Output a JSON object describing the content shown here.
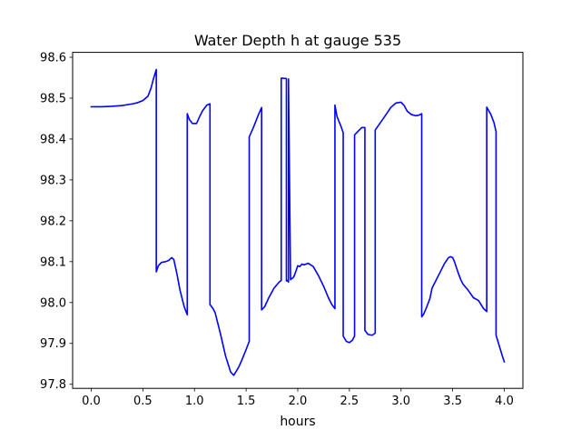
{
  "chart_data": {
    "type": "line",
    "title": "Water Depth h at gauge 535",
    "xlabel": "hours",
    "ylabel": "",
    "xlim": [
      -0.18,
      4.18
    ],
    "ylim": [
      97.79,
      98.612
    ],
    "x_ticks": [
      0.0,
      0.5,
      1.0,
      1.5,
      2.0,
      2.5,
      3.0,
      3.5,
      4.0
    ],
    "x_tick_labels": [
      "0.0",
      "0.5",
      "1.0",
      "1.5",
      "2.0",
      "2.5",
      "3.0",
      "3.5",
      "4.0"
    ],
    "y_ticks": [
      97.8,
      97.9,
      98.0,
      98.1,
      98.2,
      98.3,
      98.4,
      98.5,
      98.6
    ],
    "y_tick_labels": [
      "97.8",
      "97.9",
      "98.0",
      "98.1",
      "98.2",
      "98.3",
      "98.4",
      "98.5",
      "98.6"
    ],
    "grid": false,
    "legend": "none",
    "series": [
      {
        "color": "#0000ff",
        "x": [
          0.0,
          0.1,
          0.2,
          0.3,
          0.4,
          0.45,
          0.5,
          0.55,
          0.58,
          0.6,
          0.63,
          0.63,
          0.65,
          0.68,
          0.72,
          0.75,
          0.78,
          0.8,
          0.83,
          0.86,
          0.9,
          0.93,
          0.93,
          0.95,
          0.98,
          1.02,
          1.05,
          1.08,
          1.12,
          1.15,
          1.15,
          1.18,
          1.2,
          1.25,
          1.3,
          1.35,
          1.38,
          1.4,
          1.43,
          1.46,
          1.5,
          1.53,
          1.53,
          1.57,
          1.62,
          1.65,
          1.65,
          1.68,
          1.72,
          1.77,
          1.82,
          1.84,
          1.84,
          1.89,
          1.89,
          1.9,
          1.91,
          1.91,
          1.93,
          1.96,
          1.98,
          2.0,
          2.02,
          2.04,
          2.06,
          2.1,
          2.15,
          2.2,
          2.25,
          2.3,
          2.33,
          2.36,
          2.36,
          2.38,
          2.42,
          2.44,
          2.44,
          2.47,
          2.5,
          2.53,
          2.55,
          2.55,
          2.58,
          2.62,
          2.65,
          2.65,
          2.68,
          2.72,
          2.75,
          2.75,
          2.8,
          2.85,
          2.9,
          2.95,
          3.0,
          3.03,
          3.06,
          3.1,
          3.14,
          3.17,
          3.2,
          3.2,
          3.22,
          3.25,
          3.28,
          3.3,
          3.33,
          3.37,
          3.42,
          3.46,
          3.48,
          3.5,
          3.52,
          3.55,
          3.58,
          3.6,
          3.65,
          3.7,
          3.75,
          3.8,
          3.83,
          3.83,
          3.87,
          3.9,
          3.92,
          3.92,
          3.95,
          3.98,
          4.0
        ],
        "y": [
          98.479,
          98.479,
          98.48,
          98.482,
          98.486,
          98.489,
          98.494,
          98.505,
          98.525,
          98.545,
          98.57,
          98.075,
          98.09,
          98.098,
          98.1,
          98.103,
          98.11,
          98.105,
          98.07,
          98.03,
          97.99,
          97.97,
          98.462,
          98.448,
          98.438,
          98.438,
          98.455,
          98.47,
          98.483,
          98.486,
          97.995,
          97.985,
          97.975,
          97.925,
          97.87,
          97.83,
          97.822,
          97.83,
          97.843,
          97.86,
          97.885,
          97.905,
          98.405,
          98.428,
          98.46,
          98.477,
          97.982,
          97.99,
          98.012,
          98.035,
          98.05,
          98.054,
          98.549,
          98.548,
          98.053,
          98.054,
          98.05,
          98.547,
          98.056,
          98.062,
          98.075,
          98.09,
          98.088,
          98.094,
          98.092,
          98.096,
          98.088,
          98.066,
          98.04,
          98.01,
          97.995,
          97.985,
          98.483,
          98.455,
          98.43,
          98.415,
          97.918,
          97.905,
          97.902,
          97.908,
          97.918,
          98.41,
          98.418,
          98.428,
          98.428,
          97.932,
          97.922,
          97.92,
          97.925,
          98.422,
          98.44,
          98.458,
          98.477,
          98.488,
          98.49,
          98.482,
          98.468,
          98.46,
          98.457,
          98.458,
          98.462,
          97.965,
          97.972,
          97.99,
          98.01,
          98.035,
          98.05,
          98.07,
          98.095,
          98.11,
          98.112,
          98.11,
          98.098,
          98.075,
          98.055,
          98.045,
          98.03,
          98.012,
          98.005,
          97.985,
          97.978,
          98.478,
          98.46,
          98.44,
          98.418,
          97.92,
          97.895,
          97.87,
          97.855
        ]
      }
    ]
  }
}
